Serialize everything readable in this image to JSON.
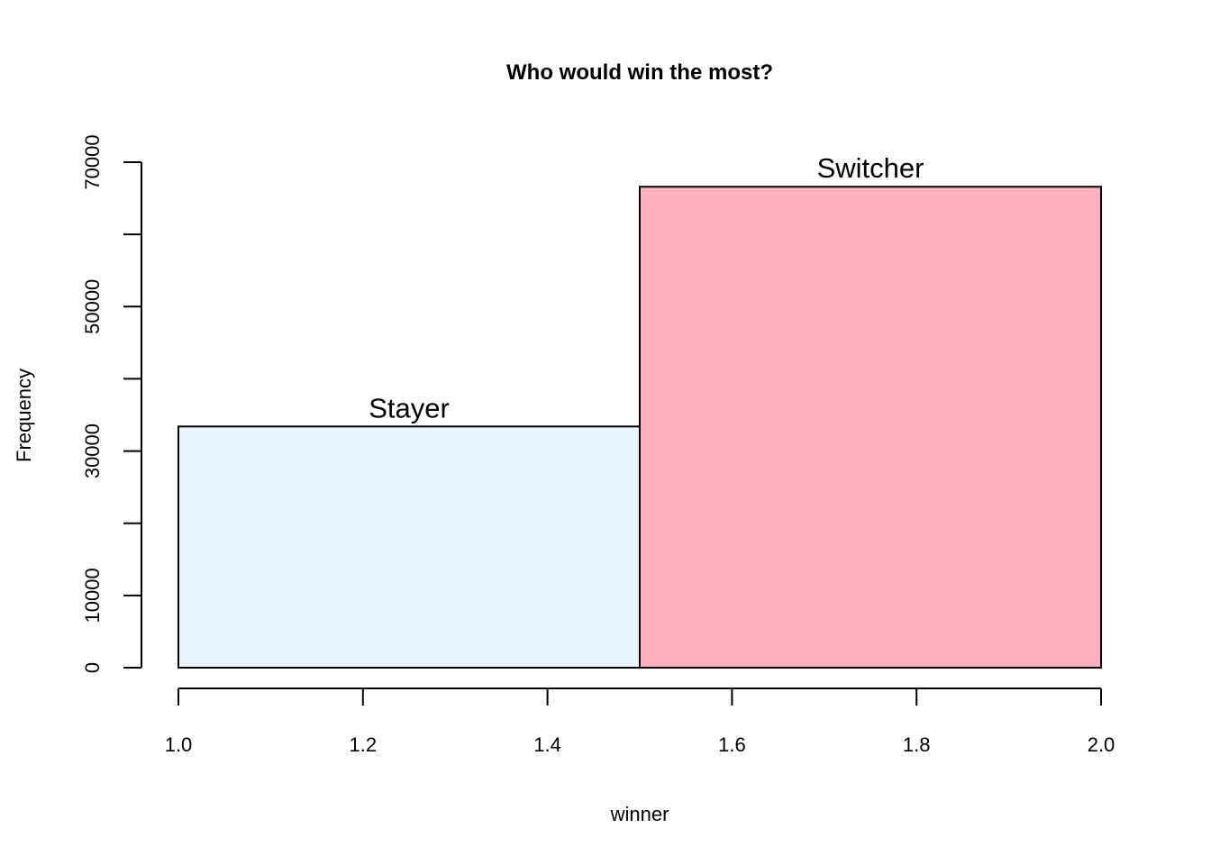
{
  "chart_data": {
    "type": "bar",
    "title": "Who would win the most?",
    "xlabel": "winner",
    "ylabel": "Frequency",
    "xlim": [
      1.0,
      2.0
    ],
    "ylim": [
      0,
      70000
    ],
    "x_ticks": [
      "1.0",
      "1.2",
      "1.4",
      "1.6",
      "1.8",
      "2.0"
    ],
    "y_ticks": [
      "0",
      "10000",
      "30000",
      "50000",
      "70000"
    ],
    "bins": [
      {
        "x0": 1.0,
        "x1": 1.5,
        "value": 33400,
        "label": "Stayer",
        "color": "#eaf4ff"
      },
      {
        "x0": 1.5,
        "x1": 2.0,
        "value": 66600,
        "label": "Switcher",
        "color": "#fdb0c2"
      }
    ],
    "grid": false,
    "legend": "none"
  }
}
